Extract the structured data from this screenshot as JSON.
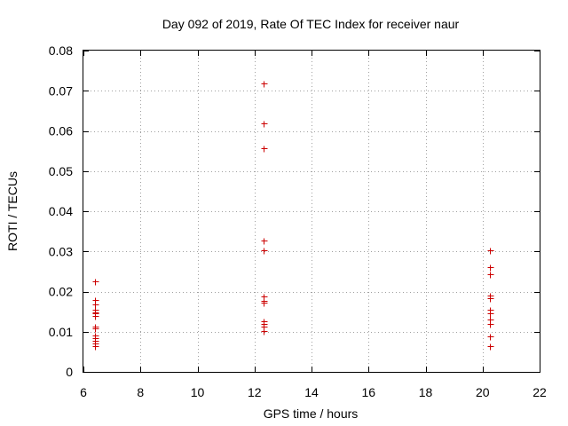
{
  "chart_data": {
    "type": "scatter",
    "title": "Day 092 of 2019, Rate Of TEC Index for receiver naur",
    "xlabel": "GPS time / hours",
    "ylabel": "ROTI / TECUs",
    "xlim": [
      6,
      22
    ],
    "ylim": [
      0,
      0.08
    ],
    "xticks": [
      6,
      8,
      10,
      12,
      14,
      16,
      18,
      20,
      22
    ],
    "yticks": [
      0,
      0.01,
      0.02,
      0.03,
      0.04,
      0.05,
      0.06,
      0.07,
      0.08
    ],
    "xtick_labels": [
      "6",
      "8",
      "10",
      "12",
      "14",
      "16",
      "18",
      "20",
      "22"
    ],
    "ytick_labels": [
      "0",
      "0.01",
      "0.02",
      "0.03",
      "0.04",
      "0.05",
      "0.06",
      "0.07",
      "0.08"
    ],
    "grid": true,
    "marker": "plus",
    "color": "#cc0000",
    "series": [
      {
        "name": "ROTI",
        "x": [
          6.42,
          6.42,
          6.42,
          6.42,
          6.42,
          6.42,
          6.42,
          6.42,
          6.42,
          6.42,
          6.42,
          6.42,
          6.42,
          6.42,
          12.33,
          12.33,
          12.33,
          12.33,
          12.33,
          12.33,
          12.33,
          12.33,
          12.33,
          12.33,
          12.33,
          12.33,
          20.25,
          20.25,
          20.25,
          20.25,
          20.25,
          20.25,
          20.25,
          20.25,
          20.25,
          20.25,
          20.25
        ],
        "y": [
          0.0225,
          0.0178,
          0.0168,
          0.0155,
          0.0148,
          0.0145,
          0.014,
          0.0112,
          0.0108,
          0.009,
          0.0085,
          0.0078,
          0.007,
          0.0065,
          0.0718,
          0.0618,
          0.0557,
          0.0327,
          0.0302,
          0.0187,
          0.0177,
          0.0173,
          0.0127,
          0.012,
          0.0112,
          0.0102,
          0.0303,
          0.026,
          0.0243,
          0.019,
          0.0183,
          0.0155,
          0.0145,
          0.013,
          0.012,
          0.0088,
          0.0065
        ]
      }
    ]
  }
}
